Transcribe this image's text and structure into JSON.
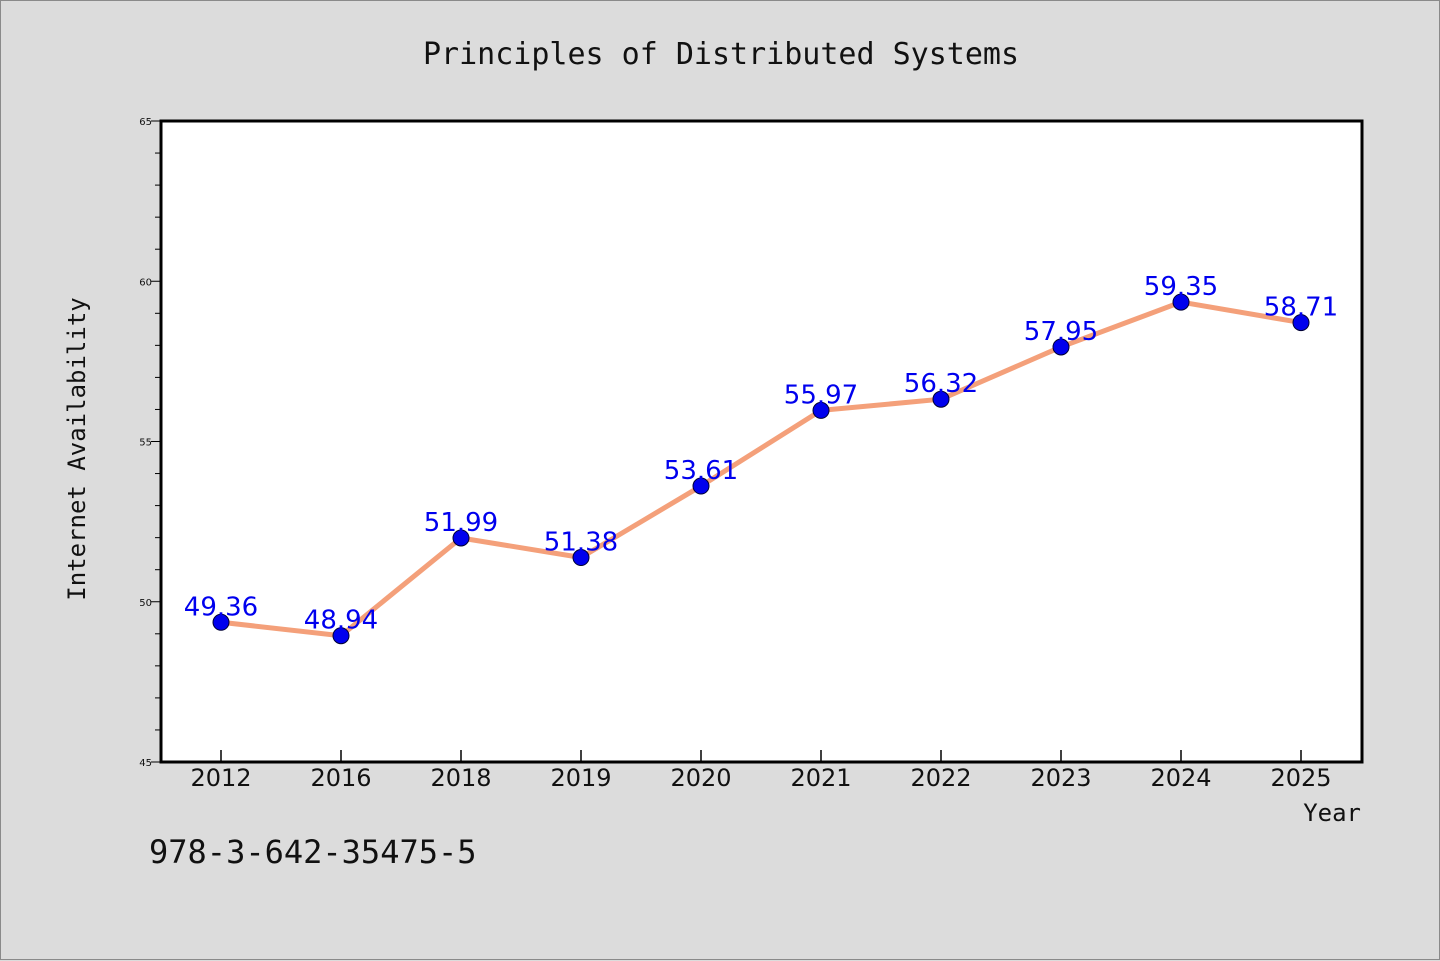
{
  "chart_data": {
    "type": "line",
    "title": "Principles of Distributed Systems",
    "xlabel": "Year",
    "ylabel": "Internet Availability",
    "categories": [
      "2012",
      "2016",
      "2018",
      "2019",
      "2020",
      "2021",
      "2022",
      "2023",
      "2024",
      "2025"
    ],
    "series": [
      {
        "values": [
          49.36,
          48.94,
          51.99,
          51.38,
          53.61,
          55.97,
          56.32,
          57.95,
          59.35,
          58.71
        ]
      }
    ],
    "data_labels": [
      "49.36",
      "48.94",
      "51.99",
      "51.38",
      "53.61",
      "55.97",
      "56.32",
      "57.95",
      "59.35",
      "58.71"
    ],
    "ylim": [
      45,
      65
    ],
    "y_ticks": [
      "45",
      "50",
      "55",
      "60",
      "65"
    ],
    "grid": false,
    "legend": "none",
    "line_color": "#f4a07a",
    "marker_color": "#0000ee",
    "label_color": "#0000ee"
  },
  "footer": {
    "isbn": "978-3-642-35475-5"
  }
}
